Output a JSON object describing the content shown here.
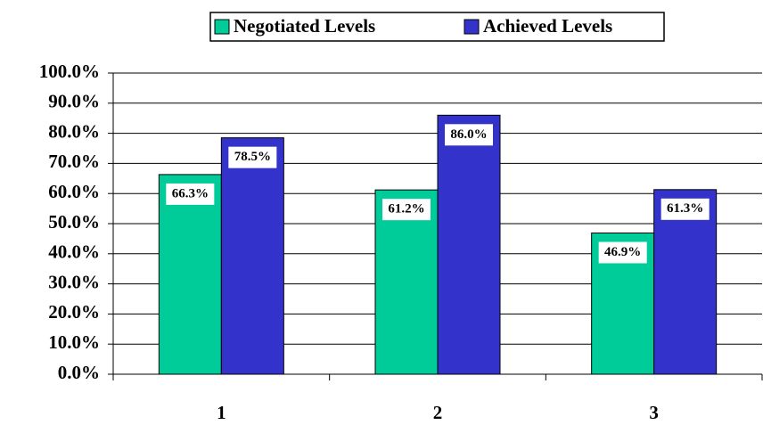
{
  "chart_data": {
    "type": "bar",
    "categories": [
      "1",
      "2",
      "3"
    ],
    "series": [
      {
        "name": "Negotiated Levels",
        "color": "#00cc99",
        "values": [
          66.3,
          61.2,
          46.9
        ],
        "value_labels": [
          "66.3%",
          "61.2%",
          "46.9%"
        ]
      },
      {
        "name": "Achieved Levels",
        "color": "#3333cc",
        "values": [
          78.5,
          86.0,
          61.3
        ],
        "value_labels": [
          "78.5%",
          "86.0%",
          "61.3%"
        ]
      }
    ],
    "ylim": [
      0,
      100
    ],
    "yticks": [
      {
        "value": 0,
        "label": "0.0%"
      },
      {
        "value": 10,
        "label": "10.0%"
      },
      {
        "value": 20,
        "label": "20.0%"
      },
      {
        "value": 30,
        "label": "30.0%"
      },
      {
        "value": 40,
        "label": "40.0%"
      },
      {
        "value": 50,
        "label": "50.0%"
      },
      {
        "value": 60,
        "label": "60.0%"
      },
      {
        "value": 70,
        "label": "70.0%"
      },
      {
        "value": 80,
        "label": "80.0%"
      },
      {
        "value": 90,
        "label": "90.0%"
      },
      {
        "value": 100,
        "label": "100.0%"
      }
    ],
    "grid": true,
    "legend": "top"
  }
}
